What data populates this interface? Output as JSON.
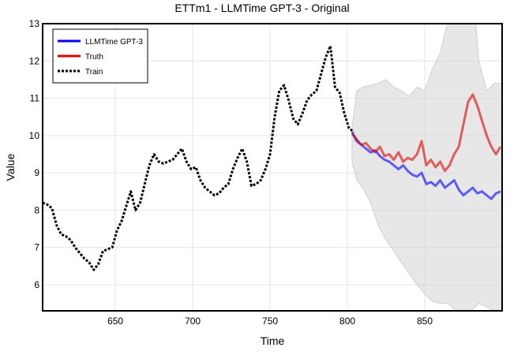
{
  "chart_data": {
    "type": "line",
    "title": "ETTm1 - LLMTime GPT-3 - Original",
    "xlabel": "Time",
    "ylabel": "Value",
    "xlim": [
      603,
      900
    ],
    "ylim": [
      5.3,
      13
    ],
    "xticks": [
      650,
      700,
      750,
      800,
      850
    ],
    "yticks": [
      6,
      7,
      8,
      9,
      10,
      11,
      12,
      13
    ],
    "grid": true,
    "legend_position": "top-left",
    "series": [
      {
        "name": "LLMTime GPT-3",
        "color": "#0000ff",
        "style": "solid",
        "x": [
          803,
          806,
          809,
          812,
          815,
          818,
          821,
          824,
          827,
          830,
          833,
          836,
          839,
          842,
          845,
          848,
          851,
          854,
          857,
          860,
          863,
          866,
          869,
          872,
          875,
          878,
          881,
          884,
          887,
          890,
          893,
          896,
          899
        ],
        "y": [
          10.1,
          9.85,
          9.75,
          9.65,
          9.55,
          9.6,
          9.45,
          9.35,
          9.3,
          9.2,
          9.1,
          9.2,
          9.05,
          8.95,
          8.9,
          9.0,
          8.7,
          8.75,
          8.65,
          8.8,
          8.6,
          8.7,
          8.8,
          8.55,
          8.4,
          8.5,
          8.6,
          8.45,
          8.5,
          8.4,
          8.3,
          8.45,
          8.5
        ]
      },
      {
        "name": "Truth",
        "color": "#e00000",
        "style": "solid",
        "x": [
          803,
          806,
          809,
          812,
          815,
          818,
          821,
          824,
          827,
          830,
          833,
          836,
          839,
          842,
          845,
          848,
          851,
          854,
          857,
          860,
          863,
          866,
          869,
          872,
          875,
          878,
          881,
          884,
          887,
          890,
          893,
          896,
          899
        ],
        "y": [
          10.05,
          9.9,
          9.75,
          9.8,
          9.65,
          9.55,
          9.7,
          9.45,
          9.5,
          9.35,
          9.55,
          9.3,
          9.4,
          9.35,
          9.5,
          9.85,
          9.2,
          9.35,
          9.15,
          9.3,
          9.05,
          9.2,
          9.5,
          9.7,
          10.3,
          10.9,
          11.1,
          10.8,
          10.4,
          10.0,
          9.7,
          9.5,
          9.7
        ]
      },
      {
        "name": "Train",
        "color": "#000000",
        "style": "dotted",
        "x": [
          603,
          606,
          609,
          612,
          615,
          618,
          621,
          624,
          627,
          630,
          633,
          636,
          639,
          642,
          645,
          648,
          651,
          654,
          657,
          660,
          663,
          666,
          669,
          672,
          675,
          678,
          681,
          684,
          687,
          690,
          693,
          696,
          699,
          702,
          705,
          708,
          711,
          714,
          717,
          720,
          723,
          726,
          729,
          732,
          735,
          738,
          741,
          744,
          747,
          750,
          753,
          756,
          759,
          762,
          765,
          768,
          771,
          774,
          777,
          780,
          783,
          786,
          789,
          792,
          795,
          798,
          801,
          804
        ],
        "y": [
          8.2,
          8.15,
          8.05,
          7.6,
          7.35,
          7.3,
          7.2,
          7.0,
          6.85,
          6.7,
          6.6,
          6.4,
          6.55,
          6.9,
          6.95,
          7.0,
          7.45,
          7.7,
          8.1,
          8.5,
          8.0,
          8.2,
          8.7,
          9.2,
          9.5,
          9.3,
          9.25,
          9.3,
          9.35,
          9.5,
          9.65,
          9.3,
          9.1,
          9.15,
          8.8,
          8.6,
          8.5,
          8.4,
          8.45,
          8.6,
          8.7,
          9.1,
          9.4,
          9.65,
          9.3,
          8.65,
          8.7,
          8.8,
          9.1,
          9.5,
          10.5,
          11.2,
          11.35,
          10.95,
          10.45,
          10.3,
          10.6,
          10.95,
          11.1,
          11.2,
          11.65,
          12.1,
          12.4,
          11.3,
          11.15,
          10.6,
          10.2,
          10.1
        ]
      }
    ],
    "uncertainty_band": {
      "color": "#d3d3d3",
      "x": [
        803,
        806,
        810,
        815,
        820,
        825,
        830,
        835,
        840,
        845,
        850,
        855,
        860,
        865,
        870,
        875,
        880,
        885,
        890,
        895,
        900
      ],
      "upper": [
        10.2,
        11.2,
        11.3,
        11.35,
        11.4,
        11.5,
        11.3,
        11.2,
        11.05,
        11.3,
        11.2,
        11.8,
        12.2,
        13.1,
        13.4,
        14.0,
        14.5,
        12.0,
        11.2,
        11.4,
        11.4
      ],
      "lower": [
        9.3,
        8.8,
        8.6,
        8.2,
        7.6,
        7.2,
        6.9,
        6.6,
        6.3,
        6.0,
        5.75,
        5.55,
        5.5,
        5.5,
        5.3,
        5.3,
        5.3,
        5.5,
        5.4,
        5.3,
        5.3
      ]
    }
  }
}
